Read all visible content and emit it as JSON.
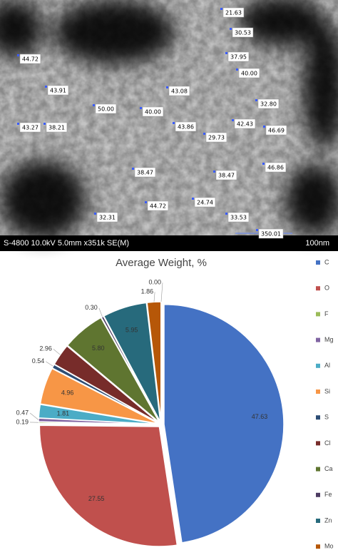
{
  "micrograph": {
    "measurements": [
      "21.63",
      "30.53",
      "44.72",
      "37.95",
      "40.00",
      "43.91",
      "43.08",
      "32.80",
      "50.00",
      "40.00",
      "43.27",
      "38.21",
      "43.86",
      "42.43",
      "29.73",
      "46.69",
      "46.86",
      "38.47",
      "38.47",
      "44.72",
      "24.74",
      "32.31",
      "33.53",
      "350.01"
    ],
    "info_bar": "S-4800 10.0kV 5.0mm x351k SE(M)",
    "scale_bar": "100nm"
  },
  "chart_data": {
    "type": "pie",
    "title": "Average Weight, %",
    "categories": [
      "C",
      "O",
      "F",
      "Mg",
      "Al",
      "Si",
      "S",
      "Cl",
      "Ca",
      "Fe",
      "Zn",
      "Mo",
      null
    ],
    "values": [
      47.63,
      27.55,
      0.19,
      0.47,
      1.81,
      4.96,
      0.54,
      2.96,
      5.8,
      0.3,
      5.95,
      1.86,
      0.0
    ],
    "value_labels": [
      "47.63",
      "27.55",
      "0.19",
      "0.47",
      "1.81",
      "4.96",
      "0.54",
      "2.96",
      "5.80",
      "0.30",
      "5.95",
      "1.86",
      "0.00"
    ],
    "colors": [
      "#4472c4",
      "#c0504d",
      "#9bbb59",
      "#8064a2",
      "#4bacc6",
      "#f79646",
      "#2c4d75",
      "#772c2a",
      "#5f7530",
      "#4d3b62",
      "#276a7c",
      "#b65708",
      "#7f9fd0"
    ],
    "legend": "right"
  }
}
